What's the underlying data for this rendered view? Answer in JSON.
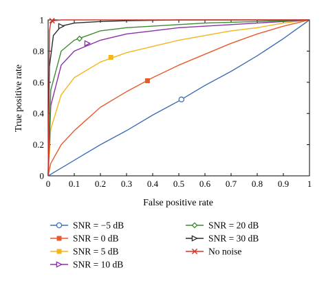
{
  "chart_data": {
    "type": "line",
    "xlabel": "False positive rate",
    "ylabel": "True positive rate",
    "xlim": [
      0,
      1
    ],
    "ylim": [
      0,
      1
    ],
    "xticks": [
      "0",
      "0.1",
      "0.2",
      "0.3",
      "0.4",
      "0.5",
      "0.6",
      "0.7",
      "0.8",
      "0.9",
      "1"
    ],
    "yticks": [
      "0",
      "0.2",
      "0.4",
      "0.6",
      "0.8",
      "1"
    ],
    "grid": false,
    "legend_position": "bottom",
    "series": [
      {
        "name": "SNR = −5 dB",
        "color": "#3d6fb6",
        "marker": "circle",
        "x": [
          0,
          0.1,
          0.2,
          0.3,
          0.4,
          0.5,
          0.6,
          0.7,
          0.8,
          0.9,
          1
        ],
        "y": [
          0,
          0.1,
          0.2,
          0.29,
          0.39,
          0.48,
          0.58,
          0.67,
          0.77,
          0.88,
          1
        ],
        "marker_at": [
          0.51,
          0.49
        ]
      },
      {
        "name": "SNR = 0 dB",
        "color": "#e8592b",
        "marker": "square",
        "x": [
          0,
          0.01,
          0.05,
          0.1,
          0.2,
          0.3,
          0.4,
          0.5,
          0.6,
          0.7,
          0.8,
          0.9,
          1
        ],
        "y": [
          0,
          0.08,
          0.2,
          0.29,
          0.44,
          0.54,
          0.63,
          0.71,
          0.78,
          0.85,
          0.91,
          0.96,
          1
        ],
        "marker_at": [
          0.38,
          0.61
        ]
      },
      {
        "name": "SNR = 5 dB",
        "color": "#f5b419",
        "marker": "square",
        "x": [
          0,
          0.01,
          0.05,
          0.1,
          0.2,
          0.3,
          0.4,
          0.5,
          0.6,
          0.7,
          0.8,
          0.9,
          1
        ],
        "y": [
          0,
          0.3,
          0.52,
          0.63,
          0.73,
          0.79,
          0.83,
          0.87,
          0.9,
          0.93,
          0.95,
          0.98,
          1
        ],
        "marker_at": [
          0.24,
          0.76
        ]
      },
      {
        "name": "SNR = 10 dB",
        "color": "#8a2fa6",
        "marker": "triangle-right",
        "x": [
          0,
          0.01,
          0.05,
          0.1,
          0.2,
          0.3,
          0.4,
          0.5,
          0.6,
          0.7,
          0.8,
          0.9,
          1
        ],
        "y": [
          0,
          0.45,
          0.71,
          0.8,
          0.87,
          0.91,
          0.93,
          0.95,
          0.96,
          0.97,
          0.98,
          0.99,
          1
        ],
        "marker_at": [
          0.15,
          0.85
        ]
      },
      {
        "name": "SNR = 20 dB",
        "color": "#3c8a2f",
        "marker": "diamond",
        "x": [
          0,
          0.01,
          0.05,
          0.1,
          0.2,
          0.3,
          0.4,
          0.5,
          0.6,
          0.7,
          0.8,
          0.9,
          1
        ],
        "y": [
          0,
          0.55,
          0.8,
          0.87,
          0.93,
          0.95,
          0.96,
          0.97,
          0.98,
          0.985,
          0.99,
          0.995,
          1
        ],
        "marker_at": [
          0.12,
          0.88
        ]
      },
      {
        "name": "SNR = 30 dB",
        "color": "#2a2a2a",
        "marker": "triangle-right",
        "x": [
          0,
          0.005,
          0.02,
          0.05,
          0.1,
          0.2,
          0.3,
          0.5,
          0.7,
          1
        ],
        "y": [
          0,
          0.7,
          0.9,
          0.96,
          0.98,
          0.99,
          0.995,
          1,
          1,
          1
        ],
        "marker_at": [
          0.05,
          0.96
        ]
      },
      {
        "name": "No noise",
        "color": "#d8332a",
        "marker": "x",
        "x": [
          0,
          0.005,
          0.01,
          0.02,
          0.05,
          0.1,
          0.3,
          0.5,
          1
        ],
        "y": [
          0,
          0.93,
          0.98,
          0.995,
          1,
          1,
          1,
          1,
          1
        ],
        "marker_at": [
          0.015,
          0.995
        ]
      }
    ]
  }
}
